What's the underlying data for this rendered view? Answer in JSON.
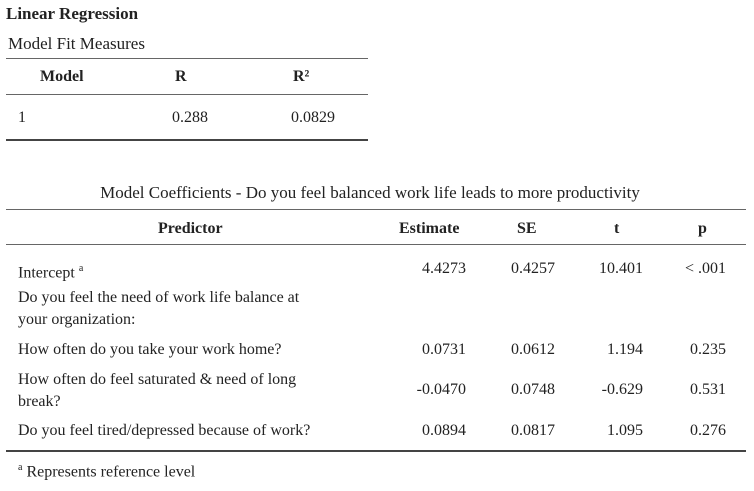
{
  "title": "Linear Regression",
  "fit": {
    "subtitle": "Model Fit Measures",
    "headers": [
      "Model",
      "R",
      "R²"
    ],
    "rows": [
      [
        "1",
        "0.288",
        "0.0829"
      ]
    ]
  },
  "coef": {
    "caption": "Model Coefficients - Do you feel balanced work life leads to more productivity",
    "headers": [
      "Predictor",
      "Estimate",
      "SE",
      "t",
      "p"
    ],
    "intercept": {
      "label": "Intercept",
      "sup": "a",
      "estimate": "4.4273",
      "se": "0.4257",
      "t": "10.401",
      "p": "< .001"
    },
    "group_label_line1": "Do you feel the need of work life balance at",
    "group_label_line2": "your organization:",
    "rows": [
      {
        "label_line1": "How often do you take your work home?",
        "estimate": "0.0731",
        "se": "0.0612",
        "t": "1.194",
        "p": "0.235"
      },
      {
        "label_line1": "How often do feel saturated & need of long",
        "label_line2": "break?",
        "estimate": "-0.0470",
        "se": "0.0748",
        "t": "-0.629",
        "p": "0.531"
      },
      {
        "label_line1": "Do you feel tired/depressed because of work?",
        "estimate": "0.0894",
        "se": "0.0817",
        "t": "1.095",
        "p": "0.276"
      }
    ],
    "footnote_sup": "a",
    "footnote": "Represents reference level"
  }
}
